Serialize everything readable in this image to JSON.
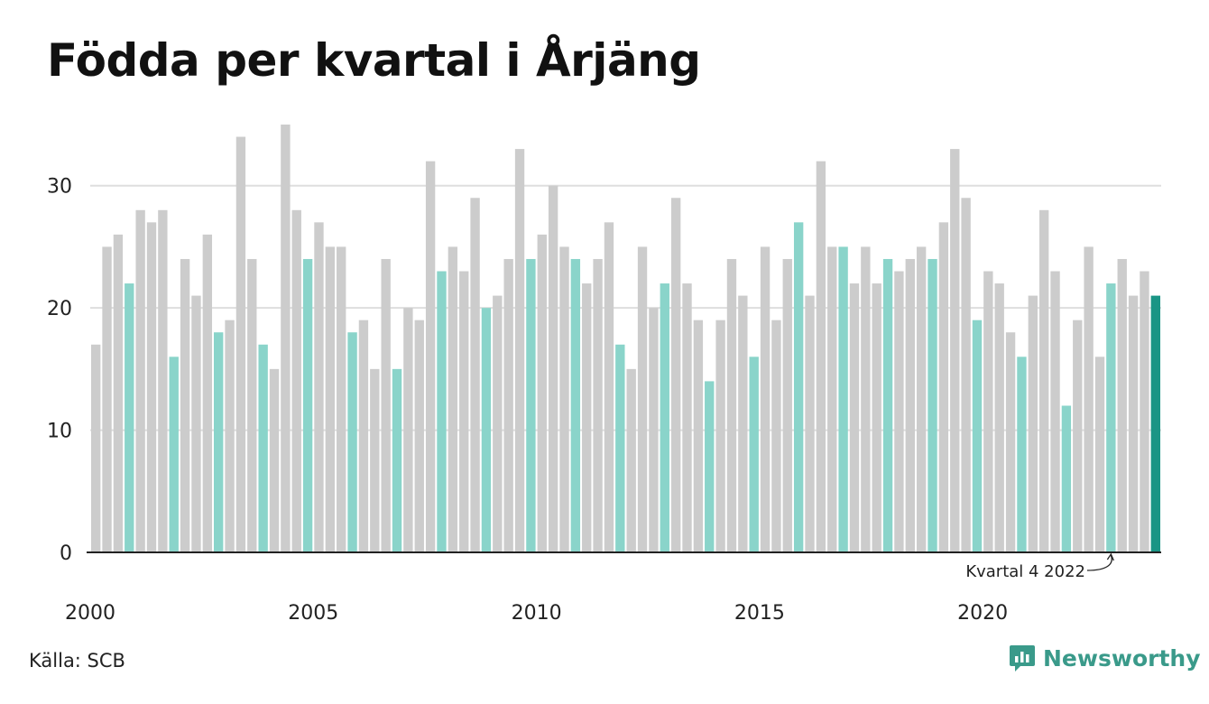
{
  "title": "Födda per kvartal i Årjäng",
  "source": "Källa: SCB",
  "brand": "Newsworthy",
  "colors": {
    "bar_default": "#cccccc",
    "bar_q4": "#8ad4ca",
    "bar_highlight": "#1a9585",
    "grid": "#dedede",
    "axis": "#222222"
  },
  "chart_data": {
    "type": "bar",
    "start_year": 2000,
    "quarters_per_year": 4,
    "values": [
      17,
      25,
      26,
      22,
      28,
      27,
      28,
      16,
      24,
      21,
      26,
      18,
      19,
      34,
      24,
      17,
      15,
      35,
      28,
      24,
      27,
      25,
      25,
      18,
      19,
      15,
      24,
      15,
      20,
      19,
      32,
      23,
      25,
      23,
      29,
      20,
      21,
      24,
      33,
      24,
      26,
      30,
      25,
      24,
      22,
      24,
      27,
      17,
      15,
      25,
      20,
      22,
      29,
      22,
      19,
      14,
      19,
      24,
      21,
      16,
      25,
      19,
      24,
      27,
      21,
      32,
      25,
      25,
      22,
      25,
      22,
      24,
      23,
      24,
      25,
      24,
      27,
      33,
      29,
      19,
      23,
      22,
      18,
      16,
      21,
      28,
      23,
      12,
      19,
      25,
      16,
      22,
      24,
      21,
      23,
      21
    ],
    "ylim": [
      0,
      35
    ],
    "yticks": [
      0,
      10,
      20,
      30
    ],
    "xticks": [
      "2000",
      "2005",
      "2010",
      "2015",
      "2020"
    ],
    "grid": true,
    "annotation": {
      "text": "Kvartal 4 2022",
      "target_index": 91
    }
  }
}
